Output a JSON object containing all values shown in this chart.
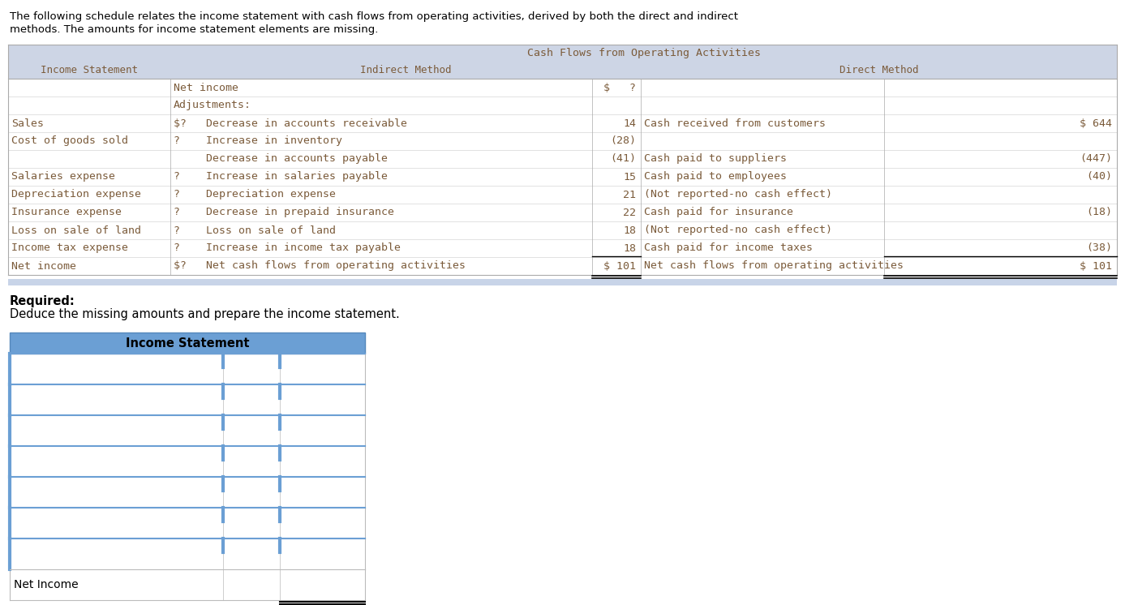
{
  "intro_line1": "The following schedule relates the income statement with cash flows from operating activities, derived by both the direct and indirect",
  "intro_line2": "methods. The amounts for income statement elements are missing.",
  "bg_color": "#ffffff",
  "table_header_bg": "#cdd5e5",
  "text_color_brown": "#7B5B3A",
  "main_table": {
    "header1": "Cash Flows from Operating Activities",
    "header_income": "Income Statement",
    "header_indirect": "Indirect Method",
    "header_direct": "Direct Method",
    "rows": [
      {
        "col0": "",
        "col1": "Net income",
        "col2": "$   ?",
        "col3": "",
        "col4": ""
      },
      {
        "col0": "",
        "col1": "Adjustments:",
        "col2": "",
        "col3": "",
        "col4": ""
      },
      {
        "col0": "Sales",
        "col1": "$?   Decrease in accounts receivable",
        "col2": "14",
        "col3": "Cash received from customers",
        "col4": "$ 644"
      },
      {
        "col0": "Cost of goods sold",
        "col1": "?    Increase in inventory",
        "col2": "(28)",
        "col3": "",
        "col4": ""
      },
      {
        "col0": "",
        "col1": "     Decrease in accounts payable",
        "col2": "(41)",
        "col3": "Cash paid to suppliers",
        "col4": "(447)"
      },
      {
        "col0": "Salaries expense",
        "col1": "?    Increase in salaries payable",
        "col2": "15",
        "col3": "Cash paid to employees",
        "col4": "(40)"
      },
      {
        "col0": "Depreciation expense",
        "col1": "?    Depreciation expense",
        "col2": "21",
        "col3": "(Not reported-no cash effect)",
        "col4": ""
      },
      {
        "col0": "Insurance expense",
        "col1": "?    Decrease in prepaid insurance",
        "col2": "22",
        "col3": "Cash paid for insurance",
        "col4": "(18)"
      },
      {
        "col0": "Loss on sale of land",
        "col1": "?    Loss on sale of land",
        "col2": "18",
        "col3": "(Not reported-no cash effect)",
        "col4": ""
      },
      {
        "col0": "Income tax expense",
        "col1": "?    Increase in income tax payable",
        "col2": "18",
        "col3": "Cash paid for income taxes",
        "col4": "(38)"
      },
      {
        "col0": "Net income",
        "col1": "$?   Net cash flows from operating activities",
        "col2": "$ 101",
        "col3": "Net cash flows from operating activities",
        "col4": "$ 101"
      }
    ]
  },
  "required_bold": "Required:",
  "required_normal": "Deduce the missing amounts and prepare the income statement.",
  "income_stmt_table": {
    "header": "Income Statement",
    "header_bg": "#6b9fd4",
    "n_data_rows": 7,
    "net_income_label": "Net Income"
  }
}
